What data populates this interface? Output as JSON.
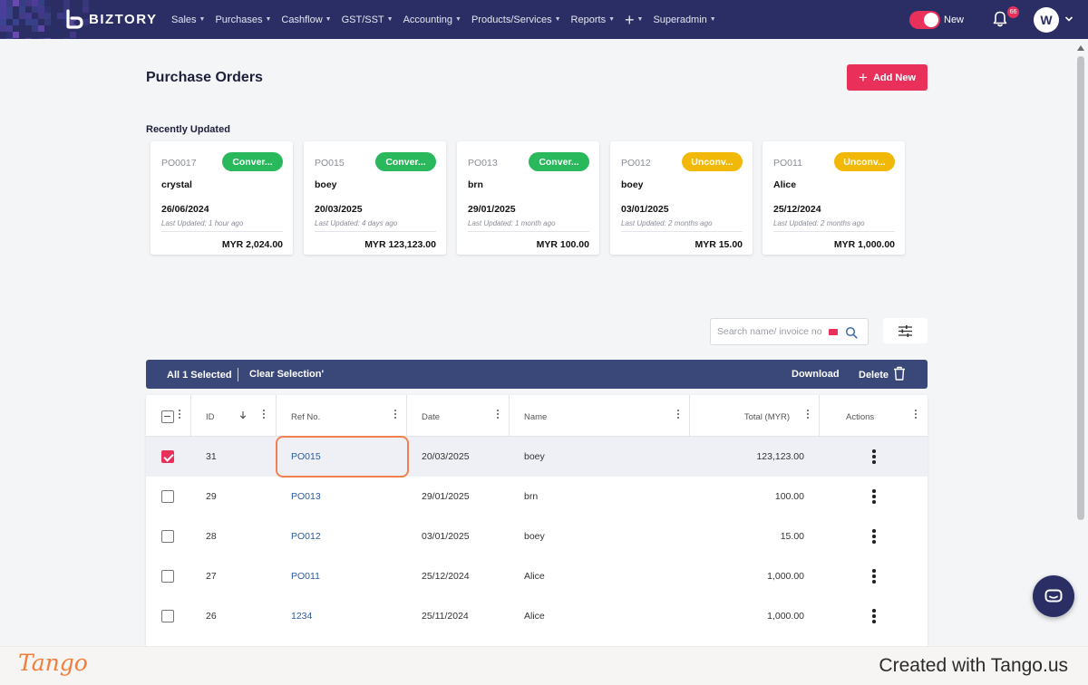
{
  "nav": {
    "brand": "BIZTORY",
    "menu": [
      {
        "label": "Sales"
      },
      {
        "label": "Purchases"
      },
      {
        "label": "Cashflow"
      },
      {
        "label": "GST/SST"
      },
      {
        "label": "Accounting"
      },
      {
        "label": "Products/Services"
      },
      {
        "label": "Reports"
      }
    ],
    "superadmin": "Superadmin",
    "toggle_label": "New",
    "notification_count": "66",
    "avatar_initial": "W",
    "colors": {
      "bar": "#2a2e64",
      "accent": "#e8305a"
    }
  },
  "page": {
    "title": "Purchase Orders",
    "add_new_label": "Add New",
    "recent_label": "Recently Updated"
  },
  "recent_cards": [
    {
      "ref": "PO0017",
      "status": "Conver...",
      "status_color": "green",
      "name": "crystal",
      "date": "26/06/2024",
      "updated": "Last Updated: 1 hour ago",
      "amount": "MYR 2,024.00"
    },
    {
      "ref": "PO015",
      "status": "Conver...",
      "status_color": "green",
      "name": "boey",
      "date": "20/03/2025",
      "updated": "Last Updated: 4 days ago",
      "amount": "MYR 123,123.00"
    },
    {
      "ref": "PO013",
      "status": "Conver...",
      "status_color": "green",
      "name": "brn",
      "date": "29/01/2025",
      "updated": "Last Updated: 1 month ago",
      "amount": "MYR 100.00"
    },
    {
      "ref": "PO012",
      "status": "Unconv...",
      "status_color": "yellow",
      "name": "boey",
      "date": "03/01/2025",
      "updated": "Last Updated: 2 months ago",
      "amount": "MYR 15.00"
    },
    {
      "ref": "PO011",
      "status": "Unconv...",
      "status_color": "yellow",
      "name": "Alice",
      "date": "25/12/2024",
      "updated": "Last Updated: 2 months ago",
      "amount": "MYR 1,000.00"
    }
  ],
  "search": {
    "placeholder": "Search name/ invoice no"
  },
  "selection_bar": {
    "count_label": "All 1 Selected",
    "clear_label": "Clear Selection'",
    "download_label": "Download",
    "delete_label": "Delete"
  },
  "table": {
    "columns": {
      "id": "ID",
      "ref": "Ref No.",
      "date": "Date",
      "name": "Name",
      "total": "Total (MYR)",
      "actions": "Actions"
    },
    "rows": [
      {
        "checked": true,
        "id": "31",
        "ref": "PO015",
        "date": "20/03/2025",
        "name": "boey",
        "total": "123,123.00"
      },
      {
        "checked": false,
        "id": "29",
        "ref": "PO013",
        "date": "29/01/2025",
        "name": "brn",
        "total": "100.00"
      },
      {
        "checked": false,
        "id": "28",
        "ref": "PO012",
        "date": "03/01/2025",
        "name": "boey",
        "total": "15.00"
      },
      {
        "checked": false,
        "id": "27",
        "ref": "PO011",
        "date": "25/12/2024",
        "name": "Alice",
        "total": "1,000.00"
      },
      {
        "checked": false,
        "id": "26",
        "ref": "1234",
        "date": "25/11/2024",
        "name": "Alice",
        "total": "1,000.00"
      }
    ]
  },
  "footer": {
    "logo": "Tango",
    "credit": "Created with Tango.us"
  }
}
